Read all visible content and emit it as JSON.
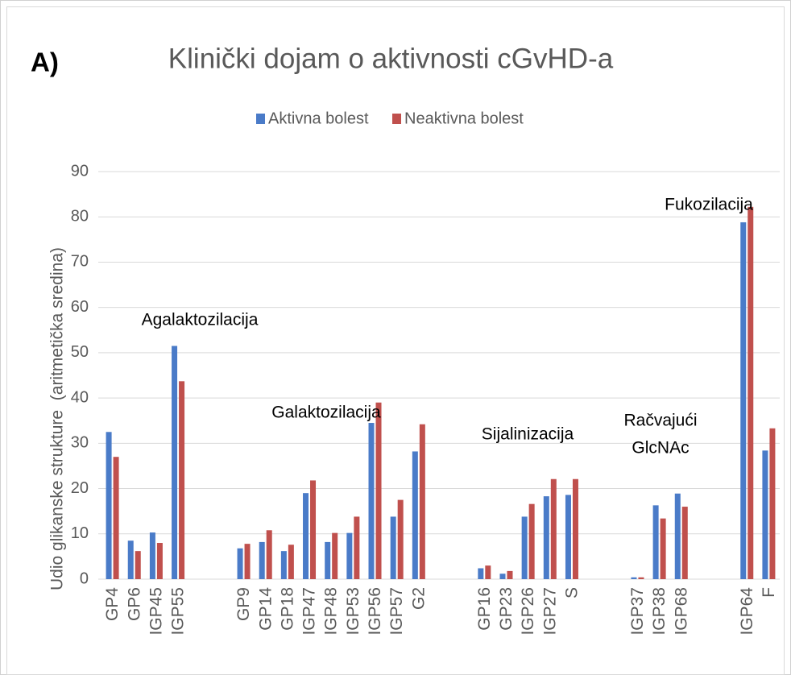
{
  "chart_data": {
    "type": "bar",
    "panel_label": "A)",
    "title": "Klinički dojam o aktivnosti cGvHD-a",
    "y_label": "Udio glikanske strukture  (aritmetička sredina)",
    "categories": [
      "GP4",
      "GP6",
      "IGP45",
      "IGP55",
      null,
      null,
      "GP9",
      "GP14",
      "GP18",
      "IGP47",
      "IGP48",
      "IGP53",
      "IGP56",
      "IGP57",
      "G2",
      null,
      null,
      "GP16",
      "GP23",
      "IGP26",
      "IGP27",
      "S",
      null,
      null,
      "IGP37",
      "IGP38",
      "IGP68",
      null,
      null,
      "IGP64",
      "F"
    ],
    "series": [
      {
        "name": "Aktivna bolest",
        "color": "#4a7bc8",
        "values": [
          32.5,
          8.5,
          10.3,
          51.5,
          null,
          null,
          6.8,
          8.2,
          6.2,
          19,
          8.2,
          10.2,
          34.5,
          13.8,
          28.2,
          null,
          null,
          2.4,
          1.2,
          13.8,
          18.3,
          18.6,
          null,
          null,
          0.4,
          16.3,
          18.9,
          null,
          null,
          78.8,
          28.4
        ]
      },
      {
        "name": "Neaktivna bolest",
        "color": "#c0504d",
        "values": [
          27,
          6.2,
          8,
          43.7,
          null,
          null,
          7.8,
          10.8,
          7.6,
          21.8,
          10.2,
          13.8,
          39,
          17.5,
          34.2,
          null,
          null,
          3.0,
          1.8,
          16.6,
          22.1,
          22.1,
          null,
          null,
          0.4,
          13.4,
          16.0,
          null,
          null,
          82.2,
          33.3
        ]
      }
    ],
    "annotations": [
      [
        "Agalaktozilacija"
      ],
      [
        "Galaktozilacija"
      ],
      [
        "Sijalinizacija"
      ],
      [
        "Račvajući",
        "GlcNAc"
      ],
      [
        "Fukozilacija"
      ]
    ],
    "ylim": [
      0,
      90
    ],
    "yticks": [
      0,
      10,
      20,
      30,
      40,
      50,
      60,
      70,
      80,
      90
    ],
    "grid": true,
    "legend": "top"
  }
}
